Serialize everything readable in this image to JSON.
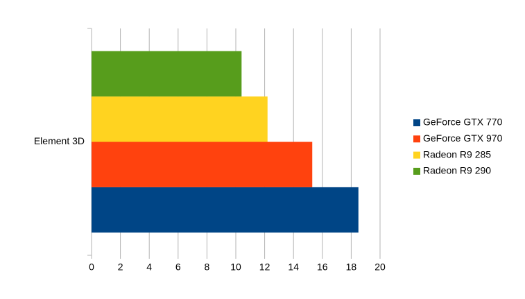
{
  "chart_data": {
    "type": "bar",
    "orientation": "horizontal",
    "categories": [
      "Element 3D"
    ],
    "series": [
      {
        "name": "GeForce GTX 770",
        "color": "#004586",
        "values": [
          18.5
        ]
      },
      {
        "name": "GeForce GTX 970",
        "color": "#ff420e",
        "values": [
          15.3
        ]
      },
      {
        "name": "Radeon R9 285",
        "color": "#ffd320",
        "values": [
          12.2
        ]
      },
      {
        "name": "Radeon R9 290",
        "color": "#579d1c",
        "values": [
          10.4
        ]
      }
    ],
    "xlim": [
      0,
      20
    ],
    "xticks": [
      0,
      2,
      4,
      6,
      8,
      10,
      12,
      14,
      16,
      18,
      20
    ],
    "grid": true,
    "legend": "right"
  }
}
